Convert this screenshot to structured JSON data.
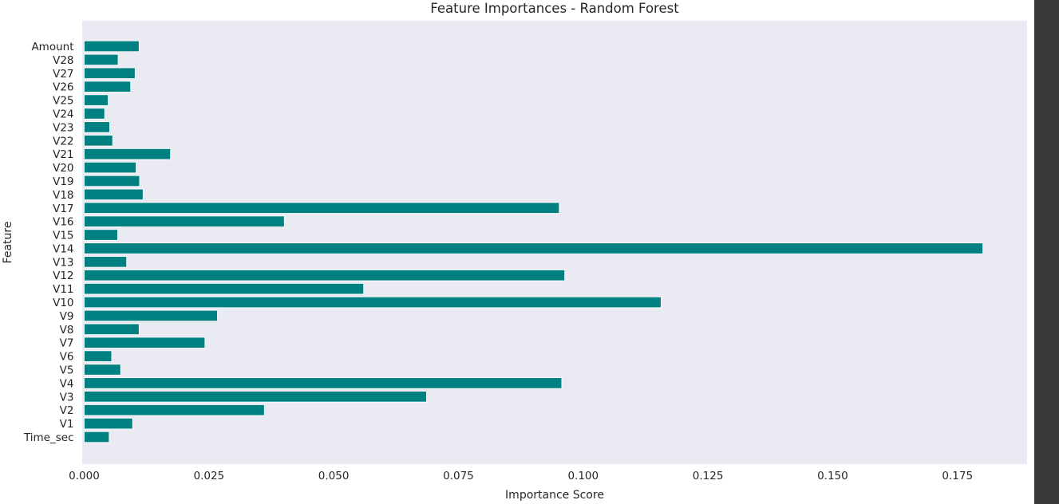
{
  "chart_data": {
    "type": "bar",
    "orientation": "horizontal",
    "title": "Feature Importances - Random Forest",
    "xlabel": "Importance Score",
    "ylabel": "Feature",
    "xlim": [
      0,
      0.189
    ],
    "xticks": [
      0.0,
      0.025,
      0.05,
      0.075,
      0.1,
      0.125,
      0.15,
      0.175
    ],
    "xtick_labels": [
      "0.000",
      "0.025",
      "0.050",
      "0.075",
      "0.100",
      "0.125",
      "0.150",
      "0.175"
    ],
    "grid": false,
    "bar_color": "#008080",
    "plot_background": "#eaeaf2",
    "categories": [
      "Time_sec",
      "V1",
      "V2",
      "V3",
      "V4",
      "V5",
      "V6",
      "V7",
      "V8",
      "V9",
      "V10",
      "V11",
      "V12",
      "V13",
      "V14",
      "V15",
      "V16",
      "V17",
      "V18",
      "V19",
      "V20",
      "V21",
      "V22",
      "V23",
      "V24",
      "V25",
      "V26",
      "V27",
      "V28",
      "Amount"
    ],
    "values": [
      0.005,
      0.0097,
      0.0361,
      0.0686,
      0.0957,
      0.0073,
      0.0055,
      0.0242,
      0.011,
      0.0267,
      0.1156,
      0.056,
      0.0963,
      0.0085,
      0.1801,
      0.0067,
      0.0401,
      0.0952,
      0.0118,
      0.0111,
      0.0104,
      0.0173,
      0.0057,
      0.0051,
      0.0041,
      0.0048,
      0.0093,
      0.0102,
      0.0068,
      0.011
    ]
  }
}
